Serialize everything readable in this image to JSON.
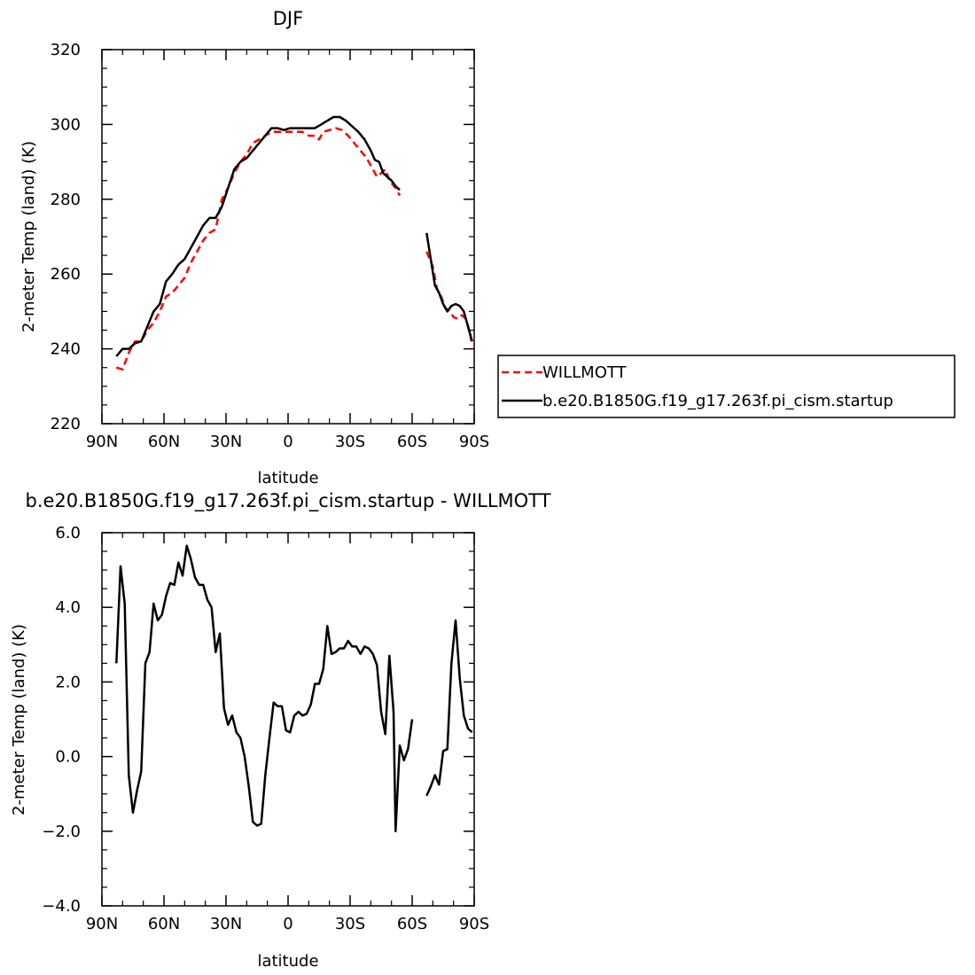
{
  "chart_data": [
    {
      "type": "line",
      "title": "DJF",
      "xlabel": "latitude",
      "ylabel": "2-meter Temp (land)  (K)",
      "xlim": [
        90,
        -90
      ],
      "ylim": [
        220,
        320
      ],
      "xticks": [
        90,
        60,
        30,
        0,
        -30,
        -60,
        -90
      ],
      "xtick_labels": [
        "90N",
        "60N",
        "30N",
        "0",
        "30S",
        "60S",
        "90S"
      ],
      "yticks": [
        220,
        240,
        260,
        280,
        300,
        320
      ],
      "ytick_labels": [
        "220",
        "240",
        "260",
        "280",
        "300",
        "320"
      ],
      "legend_position": "right",
      "series": [
        {
          "name": "WILLMOTT",
          "color": "#ff0000",
          "dash": "dashed",
          "segments": [
            [
              [
                83,
                235
              ],
              [
                80,
                234.5
              ],
              [
                77,
                239
              ],
              [
                74,
                242
              ],
              [
                71,
                242
              ],
              [
                68,
                245
              ],
              [
                65,
                247
              ],
              [
                62,
                250
              ],
              [
                59,
                254
              ],
              [
                56,
                255
              ],
              [
                53,
                257
              ],
              [
                50,
                259
              ],
              [
                47,
                263
              ],
              [
                44,
                266
              ],
              [
                41,
                269
              ],
              [
                38,
                271
              ],
              [
                35,
                272
              ],
              [
                32,
                280
              ],
              [
                29,
                283
              ],
              [
                26,
                287
              ],
              [
                23,
                290
              ],
              [
                20,
                292
              ],
              [
                17,
                295
              ],
              [
                14,
                296
              ],
              [
                11,
                297
              ],
              [
                8,
                298
              ],
              [
                5,
                298
              ],
              [
                2,
                298
              ],
              [
                -1,
                298
              ],
              [
                -4,
                298
              ],
              [
                -7,
                298
              ],
              [
                -10,
                297
              ],
              [
                -13,
                297
              ],
              [
                -15,
                296
              ],
              [
                -17,
                298
              ],
              [
                -20,
                298.5
              ],
              [
                -23,
                299
              ],
              [
                -26,
                298.5
              ],
              [
                -29,
                297
              ],
              [
                -32,
                295
              ],
              [
                -35,
                293
              ],
              [
                -38,
                291
              ],
              [
                -41,
                288
              ],
              [
                -43,
                286
              ],
              [
                -45,
                287
              ],
              [
                -47,
                288
              ],
              [
                -49,
                285
              ],
              [
                -52,
                283
              ],
              [
                -54,
                281
              ]
            ],
            [
              [
                -67,
                266
              ],
              [
                -70,
                262
              ],
              [
                -72,
                256
              ],
              [
                -74,
                254
              ],
              [
                -76,
                251
              ],
              [
                -78,
                250
              ],
              [
                -80,
                248.5
              ],
              [
                -82,
                248
              ],
              [
                -84,
                249
              ],
              [
                -86,
                248
              ],
              [
                -88,
                244
              ],
              [
                -89,
                241
              ]
            ]
          ]
        },
        {
          "name": "b.e20.B1850G.f19_g17.263f.pi_cism.startup",
          "color": "#000000",
          "dash": "solid",
          "segments": [
            [
              [
                83,
                238
              ],
              [
                80,
                240
              ],
              [
                77,
                240
              ],
              [
                74,
                241.5
              ],
              [
                71,
                242
              ],
              [
                68,
                246
              ],
              [
                65,
                250
              ],
              [
                62,
                252
              ],
              [
                59,
                258
              ],
              [
                56,
                260
              ],
              [
                53,
                262.5
              ],
              [
                50,
                264
              ],
              [
                47,
                267
              ],
              [
                44,
                270
              ],
              [
                41,
                273
              ],
              [
                38,
                275
              ],
              [
                35,
                275
              ],
              [
                32,
                278
              ],
              [
                29,
                283
              ],
              [
                26,
                288
              ],
              [
                23,
                290
              ],
              [
                20,
                291
              ],
              [
                17,
                293
              ],
              [
                14,
                295
              ],
              [
                11,
                297
              ],
              [
                8,
                299
              ],
              [
                5,
                299
              ],
              [
                2,
                298.5
              ],
              [
                -1,
                299
              ],
              [
                -4,
                299
              ],
              [
                -7,
                299
              ],
              [
                -10,
                299
              ],
              [
                -13,
                299
              ],
              [
                -16,
                300
              ],
              [
                -19,
                301
              ],
              [
                -22,
                302
              ],
              [
                -25,
                302
              ],
              [
                -28,
                301
              ],
              [
                -31,
                299.5
              ],
              [
                -34,
                298
              ],
              [
                -37,
                296
              ],
              [
                -40,
                293
              ],
              [
                -42,
                290.5
              ],
              [
                -44,
                290
              ],
              [
                -46,
                287
              ],
              [
                -48,
                286
              ],
              [
                -50,
                285
              ],
              [
                -52,
                283.5
              ],
              [
                -54,
                282.5
              ]
            ],
            [
              [
                -67,
                271
              ],
              [
                -69,
                264
              ],
              [
                -71,
                257
              ],
              [
                -73,
                255
              ],
              [
                -75,
                252
              ],
              [
                -77,
                250
              ],
              [
                -79,
                251.5
              ],
              [
                -81,
                252
              ],
              [
                -83,
                251.5
              ],
              [
                -85,
                250
              ],
              [
                -87,
                246
              ],
              [
                -89,
                242
              ]
            ]
          ]
        }
      ]
    },
    {
      "type": "line",
      "title": "b.e20.B1850G.f19_g17.263f.pi_cism.startup  -  WILLMOTT",
      "xlabel": "latitude",
      "ylabel": "2-meter Temp (land)  (K)",
      "xlim": [
        90,
        -90
      ],
      "ylim": [
        -4.0,
        6.0
      ],
      "xticks": [
        90,
        60,
        30,
        0,
        -30,
        -60,
        -90
      ],
      "xtick_labels": [
        "90N",
        "60N",
        "30N",
        "0",
        "30S",
        "60S",
        "90S"
      ],
      "yticks": [
        -4.0,
        -2.0,
        0.0,
        2.0,
        4.0,
        6.0
      ],
      "ytick_labels": [
        "−4.0",
        "−2.0",
        "0.0",
        "2.0",
        "4.0",
        "6.0"
      ],
      "series": [
        {
          "color": "#000000",
          "dash": "solid",
          "segments": [
            [
              [
                83,
                2.5
              ],
              [
                81,
                5.1
              ],
              [
                79,
                4.1
              ],
              [
                77,
                -0.5
              ],
              [
                75,
                -1.5
              ],
              [
                73,
                -0.9
              ],
              [
                71,
                -0.4
              ],
              [
                69,
                2.5
              ],
              [
                67,
                2.8
              ],
              [
                65,
                4.1
              ],
              [
                63,
                3.65
              ],
              [
                61,
                3.8
              ],
              [
                59,
                4.3
              ],
              [
                57,
                4.65
              ],
              [
                55,
                4.6
              ],
              [
                53,
                5.2
              ],
              [
                51,
                4.85
              ],
              [
                49,
                5.65
              ],
              [
                47,
                5.3
              ],
              [
                45,
                4.8
              ],
              [
                43,
                4.6
              ],
              [
                41,
                4.6
              ],
              [
                39,
                4.2
              ],
              [
                37,
                4.0
              ],
              [
                35,
                2.8
              ],
              [
                33,
                3.3
              ],
              [
                31,
                1.3
              ],
              [
                29,
                0.85
              ],
              [
                27,
                1.1
              ],
              [
                25,
                0.65
              ],
              [
                23,
                0.5
              ],
              [
                21,
                0.0
              ],
              [
                19,
                -0.8
              ],
              [
                17,
                -1.75
              ],
              [
                15,
                -1.85
              ],
              [
                13,
                -1.8
              ],
              [
                11,
                -0.5
              ],
              [
                9,
                0.5
              ],
              [
                7,
                1.45
              ],
              [
                5,
                1.35
              ],
              [
                3,
                1.35
              ],
              [
                1,
                0.7
              ],
              [
                -1,
                0.65
              ],
              [
                -3,
                1.1
              ],
              [
                -5,
                1.2
              ],
              [
                -7,
                1.1
              ],
              [
                -9,
                1.15
              ],
              [
                -11,
                1.4
              ],
              [
                -13,
                1.95
              ],
              [
                -15,
                1.95
              ],
              [
                -17,
                2.35
              ],
              [
                -19,
                3.5
              ],
              [
                -21,
                2.75
              ],
              [
                -23,
                2.8
              ],
              [
                -25,
                2.9
              ],
              [
                -27,
                2.9
              ],
              [
                -29,
                3.1
              ],
              [
                -31,
                2.95
              ],
              [
                -33,
                2.95
              ],
              [
                -35,
                2.75
              ],
              [
                -37,
                2.95
              ],
              [
                -39,
                2.9
              ],
              [
                -41,
                2.75
              ],
              [
                -43,
                2.45
              ],
              [
                -45,
                1.2
              ],
              [
                -47,
                0.6
              ],
              [
                -49,
                2.7
              ],
              [
                -51,
                1.2
              ],
              [
                -52,
                -2.0
              ],
              [
                -54,
                0.3
              ],
              [
                -56,
                -0.1
              ],
              [
                -58,
                0.2
              ],
              [
                -60,
                1.0
              ]
            ],
            [
              [
                -67,
                -1.05
              ],
              [
                -69,
                -0.8
              ],
              [
                -71,
                -0.5
              ],
              [
                -73,
                -0.75
              ],
              [
                -75,
                0.15
              ],
              [
                -77,
                0.2
              ],
              [
                -79,
                2.5
              ],
              [
                -81,
                3.65
              ],
              [
                -83,
                2.1
              ],
              [
                -85,
                1.1
              ],
              [
                -87,
                0.75
              ],
              [
                -89,
                0.65
              ]
            ]
          ]
        }
      ]
    }
  ]
}
